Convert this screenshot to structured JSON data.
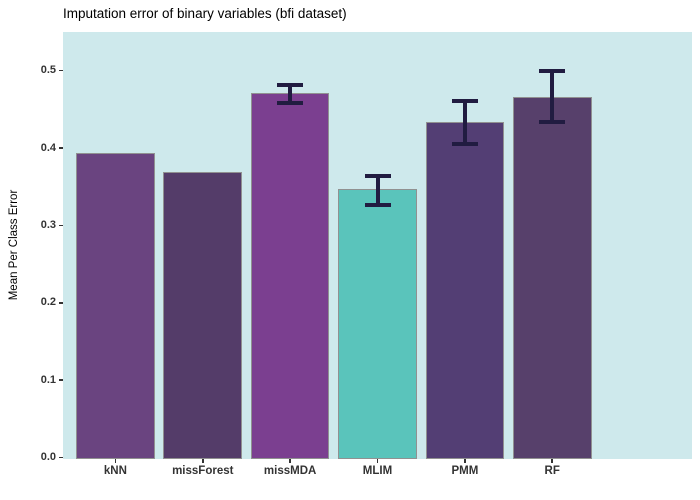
{
  "chart_data": {
    "type": "bar",
    "title": "Imputation error of binary variables (bfi dataset)",
    "xlabel": "",
    "ylabel": "Mean Per Class Error",
    "categories": [
      "kNN",
      "missForest",
      "missMDA",
      "MLIM",
      "PMM",
      "RF"
    ],
    "values": [
      0.394,
      0.369,
      0.471,
      0.347,
      0.434,
      0.466
    ],
    "error_low": [
      null,
      null,
      0.456,
      0.324,
      0.403,
      0.431
    ],
    "error_high": [
      null,
      null,
      0.484,
      0.366,
      0.464,
      0.502
    ],
    "bar_colors": [
      "#6a4480",
      "#543c69",
      "#7b3f90",
      "#5ac4bb",
      "#533e74",
      "#57406b"
    ],
    "ylim": [
      0,
      0.55
    ],
    "yticks": [
      0,
      0.1,
      0.2,
      0.3,
      0.4,
      0.5
    ],
    "ytick_labels": [
      "0.0",
      "0.1",
      "0.2",
      "0.3",
      "0.4",
      "0.5"
    ],
    "grid": false,
    "legend": "none",
    "panel_bg": "#cee9ec",
    "bar_border_color": "#919191",
    "error_bar_color": "#211c41",
    "axis_text_color": "#333333"
  }
}
